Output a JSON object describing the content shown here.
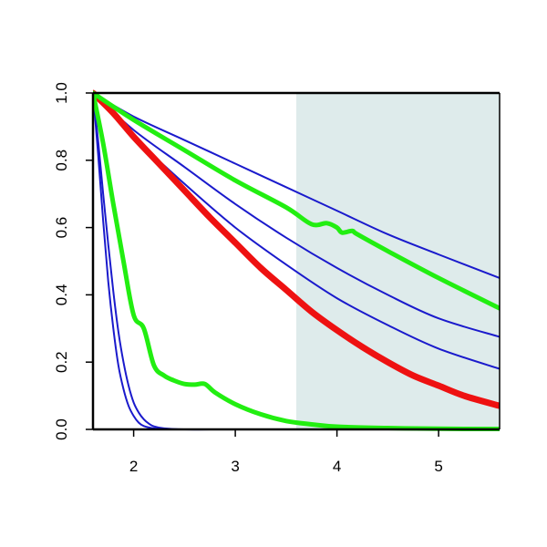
{
  "chart_data": {
    "type": "line",
    "title": "",
    "xlabel": "",
    "ylabel": "",
    "xlim": [
      1.6,
      5.6
    ],
    "ylim": [
      0.0,
      1.0
    ],
    "x_ticks": [
      {
        "value": 2,
        "label": "2"
      },
      {
        "value": 3,
        "label": "3"
      },
      {
        "value": 4,
        "label": "4"
      },
      {
        "value": 5,
        "label": "5"
      }
    ],
    "y_ticks": [
      {
        "value": 0.0,
        "label": "0.0"
      },
      {
        "value": 0.2,
        "label": "0.2"
      },
      {
        "value": 0.4,
        "label": "0.4"
      },
      {
        "value": 0.6,
        "label": "0.6"
      },
      {
        "value": 0.8,
        "label": "0.8"
      },
      {
        "value": 1.0,
        "label": "1.0"
      }
    ],
    "grid": false,
    "legend": "none",
    "shaded_region": {
      "x_start": 3.6,
      "x_end": 5.6,
      "color": "#deebeb"
    },
    "series": [
      {
        "color": "#1a1acc",
        "width": 2,
        "x": [
          1.6,
          1.65,
          1.7,
          1.75,
          1.8,
          1.85,
          1.9,
          1.95,
          2.0,
          2.05,
          2.1,
          2.2,
          2.3,
          2.5,
          3.0,
          4.0,
          5.6
        ],
        "y": [
          1.0,
          0.82,
          0.62,
          0.44,
          0.3,
          0.19,
          0.12,
          0.07,
          0.04,
          0.02,
          0.01,
          0.003,
          0.001,
          0.0,
          0.0,
          0.0,
          0.0
        ]
      },
      {
        "color": "#1a1acc",
        "width": 2,
        "x": [
          1.6,
          1.65,
          1.7,
          1.75,
          1.8,
          1.85,
          1.9,
          1.95,
          2.0,
          2.05,
          2.1,
          2.15,
          2.2,
          2.3,
          2.5,
          3.0,
          4.0,
          5.6
        ],
        "y": [
          1.0,
          0.86,
          0.7,
          0.55,
          0.41,
          0.29,
          0.2,
          0.13,
          0.08,
          0.05,
          0.03,
          0.017,
          0.009,
          0.003,
          0.0,
          0.0,
          0.0,
          0.0
        ]
      },
      {
        "color": "#1a1acc",
        "width": 2,
        "x": [
          1.6,
          2.0,
          2.5,
          3.0,
          3.5,
          4.0,
          4.5,
          5.0,
          5.6
        ],
        "y": [
          1.0,
          0.87,
          0.73,
          0.6,
          0.49,
          0.39,
          0.31,
          0.24,
          0.18
        ]
      },
      {
        "color": "#1a1acc",
        "width": 2,
        "x": [
          1.6,
          2.0,
          2.5,
          3.0,
          3.5,
          4.0,
          4.5,
          5.0,
          5.6
        ],
        "y": [
          1.0,
          0.89,
          0.78,
          0.67,
          0.57,
          0.48,
          0.4,
          0.33,
          0.275
        ]
      },
      {
        "color": "#1a1acc",
        "width": 2,
        "x": [
          1.6,
          2.0,
          2.5,
          3.0,
          3.5,
          4.0,
          4.5,
          5.0,
          5.6
        ],
        "y": [
          1.0,
          0.93,
          0.86,
          0.79,
          0.72,
          0.65,
          0.58,
          0.52,
          0.45
        ]
      },
      {
        "color": "#ee1111",
        "width": 7,
        "x": [
          1.6,
          1.8,
          2.0,
          2.25,
          2.5,
          2.75,
          3.0,
          3.25,
          3.5,
          3.75,
          4.0,
          4.25,
          4.5,
          4.75,
          5.0,
          5.25,
          5.6
        ],
        "y": [
          1.0,
          0.94,
          0.87,
          0.79,
          0.71,
          0.63,
          0.555,
          0.48,
          0.415,
          0.35,
          0.295,
          0.245,
          0.2,
          0.16,
          0.13,
          0.1,
          0.07
        ]
      },
      {
        "color": "#22ee11",
        "width": 5,
        "x": [
          1.6,
          1.7,
          1.8,
          1.9,
          2.0,
          2.1,
          2.2,
          2.3,
          2.4,
          2.5,
          2.6,
          2.7,
          2.8,
          3.0,
          3.25,
          3.5,
          3.75,
          4.0,
          4.5,
          5.0,
          5.6
        ],
        "y": [
          1.0,
          0.85,
          0.67,
          0.5,
          0.34,
          0.3,
          0.19,
          0.16,
          0.145,
          0.135,
          0.133,
          0.135,
          0.11,
          0.075,
          0.045,
          0.025,
          0.015,
          0.008,
          0.004,
          0.002,
          0.001
        ]
      },
      {
        "color": "#22ee11",
        "width": 5,
        "x": [
          1.6,
          2.0,
          2.5,
          3.0,
          3.5,
          3.75,
          3.9,
          4.0,
          4.05,
          4.15,
          4.2,
          4.5,
          5.0,
          5.6
        ],
        "y": [
          1.0,
          0.92,
          0.83,
          0.74,
          0.66,
          0.61,
          0.613,
          0.6,
          0.585,
          0.59,
          0.58,
          0.53,
          0.45,
          0.36
        ]
      }
    ]
  }
}
